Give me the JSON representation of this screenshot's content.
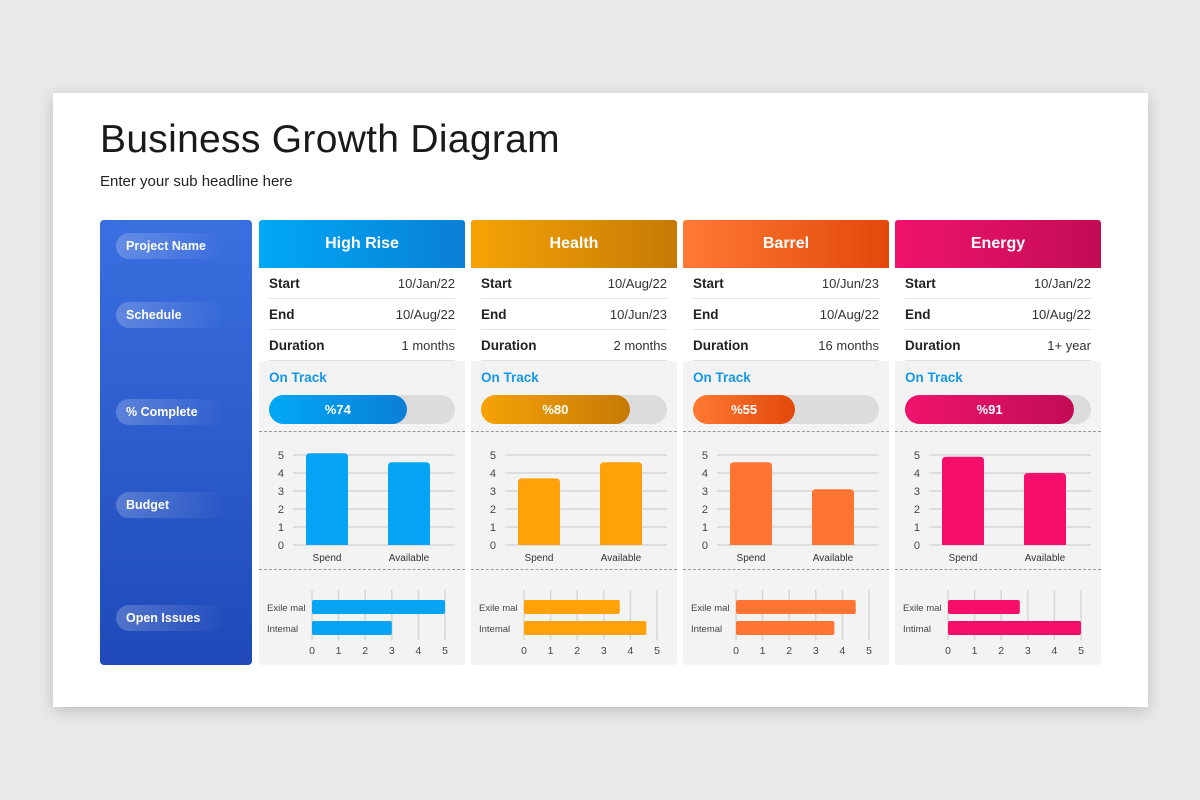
{
  "title": "Business Growth Diagram",
  "subtitle": "Enter your sub headline here",
  "sidebar": [
    "Project Name",
    "Schedule",
    "% Complete",
    "Budget",
    "Open Issues"
  ],
  "labels": {
    "start": "Start",
    "end": "End",
    "duration": "Duration"
  },
  "projects": [
    {
      "name": "High Rise",
      "start": "10/Jan/22",
      "end": "10/Aug/22",
      "duration": "1 months",
      "status": "On Track",
      "complete_label": "%74",
      "complete": 74,
      "color": "#05a4f5",
      "grad": [
        "#00a8f5",
        "#0a7fd6"
      ],
      "status_color": "#1598e8"
    },
    {
      "name": "Health",
      "start": "10/Aug/22",
      "end": "10/Jun/23",
      "duration": "2 months",
      "status": "On Track",
      "complete_label": "%80",
      "complete": 80,
      "color": "#ffa20a",
      "grad": [
        "#f6a306",
        "#c57a05"
      ],
      "status_color": "#1598e8"
    },
    {
      "name": "Barrel",
      "start": "10/Jun/23",
      "end": "10/Aug/22",
      "duration": "16 months",
      "status": "On Track",
      "complete_label": "%55",
      "complete": 55,
      "color": "#ff7433",
      "grad": [
        "#ff7a35",
        "#e2480a"
      ],
      "status_color": "#1598e8"
    },
    {
      "name": "Energy",
      "start": "10/Jan/22",
      "end": "10/Aug/22",
      "duration": "1+ year",
      "status": "On Track",
      "complete_label": "%91",
      "complete": 91,
      "color": "#f50f6a",
      "grad": [
        "#f0136e",
        "#c20c55"
      ],
      "status_color": "#1598e8"
    }
  ],
  "chart_data": [
    {
      "type": "bar",
      "title": "Budget - High Rise",
      "categories": [
        "Spend",
        "Available"
      ],
      "values": [
        5.1,
        4.6
      ],
      "ylim": [
        0,
        5
      ],
      "yticks": [
        "0",
        "1",
        "2",
        "3",
        "4",
        "5"
      ]
    },
    {
      "type": "bar",
      "title": "Budget - Health",
      "categories": [
        "Spend",
        "Available"
      ],
      "values": [
        3.7,
        4.6
      ],
      "ylim": [
        0,
        5
      ],
      "yticks": [
        "0",
        "1",
        "2",
        "3",
        "4",
        "5"
      ]
    },
    {
      "type": "bar",
      "title": "Budget - Barrel",
      "categories": [
        "Spend",
        "Available"
      ],
      "values": [
        4.6,
        3.1
      ],
      "ylim": [
        0,
        5
      ],
      "yticks": [
        "0",
        "1",
        "2",
        "3",
        "4",
        "5"
      ]
    },
    {
      "type": "bar",
      "title": "Budget - Energy",
      "categories": [
        "Spend",
        "Available"
      ],
      "values": [
        4.9,
        4.0
      ],
      "ylim": [
        0,
        5
      ],
      "yticks": [
        "0",
        "1",
        "2",
        "3",
        "4",
        "5"
      ]
    },
    {
      "type": "bar",
      "orientation": "horizontal",
      "title": "Open Issues - High Rise",
      "categories": [
        "Exile mal",
        "Intemal"
      ],
      "values": [
        5,
        3
      ],
      "xlim": [
        0,
        5
      ],
      "xticks": [
        "0",
        "1",
        "2",
        "3",
        "4",
        "5"
      ]
    },
    {
      "type": "bar",
      "orientation": "horizontal",
      "title": "Open Issues - Health",
      "categories": [
        "Exile mal",
        "Intemal"
      ],
      "values": [
        3.6,
        4.6
      ],
      "xlim": [
        0,
        5
      ],
      "xticks": [
        "0",
        "1",
        "2",
        "3",
        "4",
        "5"
      ]
    },
    {
      "type": "bar",
      "orientation": "horizontal",
      "title": "Open Issues - Barrel",
      "categories": [
        "Exile mal",
        "Intemal"
      ],
      "values": [
        4.5,
        3.7
      ],
      "xlim": [
        0,
        5
      ],
      "xticks": [
        "0",
        "1",
        "2",
        "3",
        "4",
        "5"
      ]
    },
    {
      "type": "bar",
      "orientation": "horizontal",
      "title": "Open Issues - Energy",
      "categories": [
        "Exile mal",
        "Intimal"
      ],
      "values": [
        2.7,
        5
      ],
      "xlim": [
        0,
        5
      ],
      "xticks": [
        "0",
        "1",
        "2",
        "3",
        "4",
        "5"
      ]
    }
  ]
}
